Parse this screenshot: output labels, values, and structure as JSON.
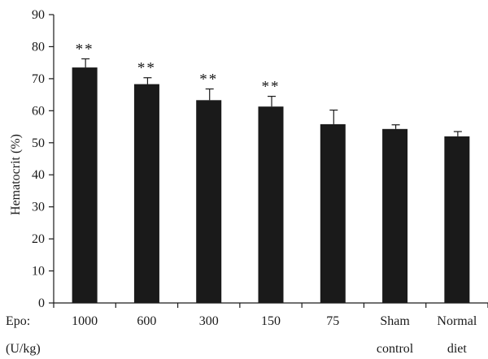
{
  "chart_data": {
    "type": "bar",
    "ylabel": "Hematocrit (%)",
    "xlabel_prefix": [
      "Epo:",
      "(U/kg)"
    ],
    "ylim": [
      0,
      90
    ],
    "yticks": [
      "0",
      "10",
      "20",
      "30",
      "40",
      "50",
      "60",
      "70",
      "80",
      "90"
    ],
    "categories": [
      [
        "1000"
      ],
      [
        "600"
      ],
      [
        "300"
      ],
      [
        "150"
      ],
      [
        "75"
      ],
      [
        "Sham",
        "control"
      ],
      [
        "Normal",
        "diet"
      ]
    ],
    "values": [
      73.5,
      68.3,
      63.3,
      61.3,
      55.8,
      54.3,
      52.0
    ],
    "errors": [
      2.7,
      2.0,
      3.5,
      3.2,
      4.4,
      1.3,
      1.5
    ],
    "significance": [
      "**",
      "**",
      "**",
      "**",
      "",
      "",
      ""
    ],
    "bar_color": "#1a1a1a",
    "grid": false
  }
}
